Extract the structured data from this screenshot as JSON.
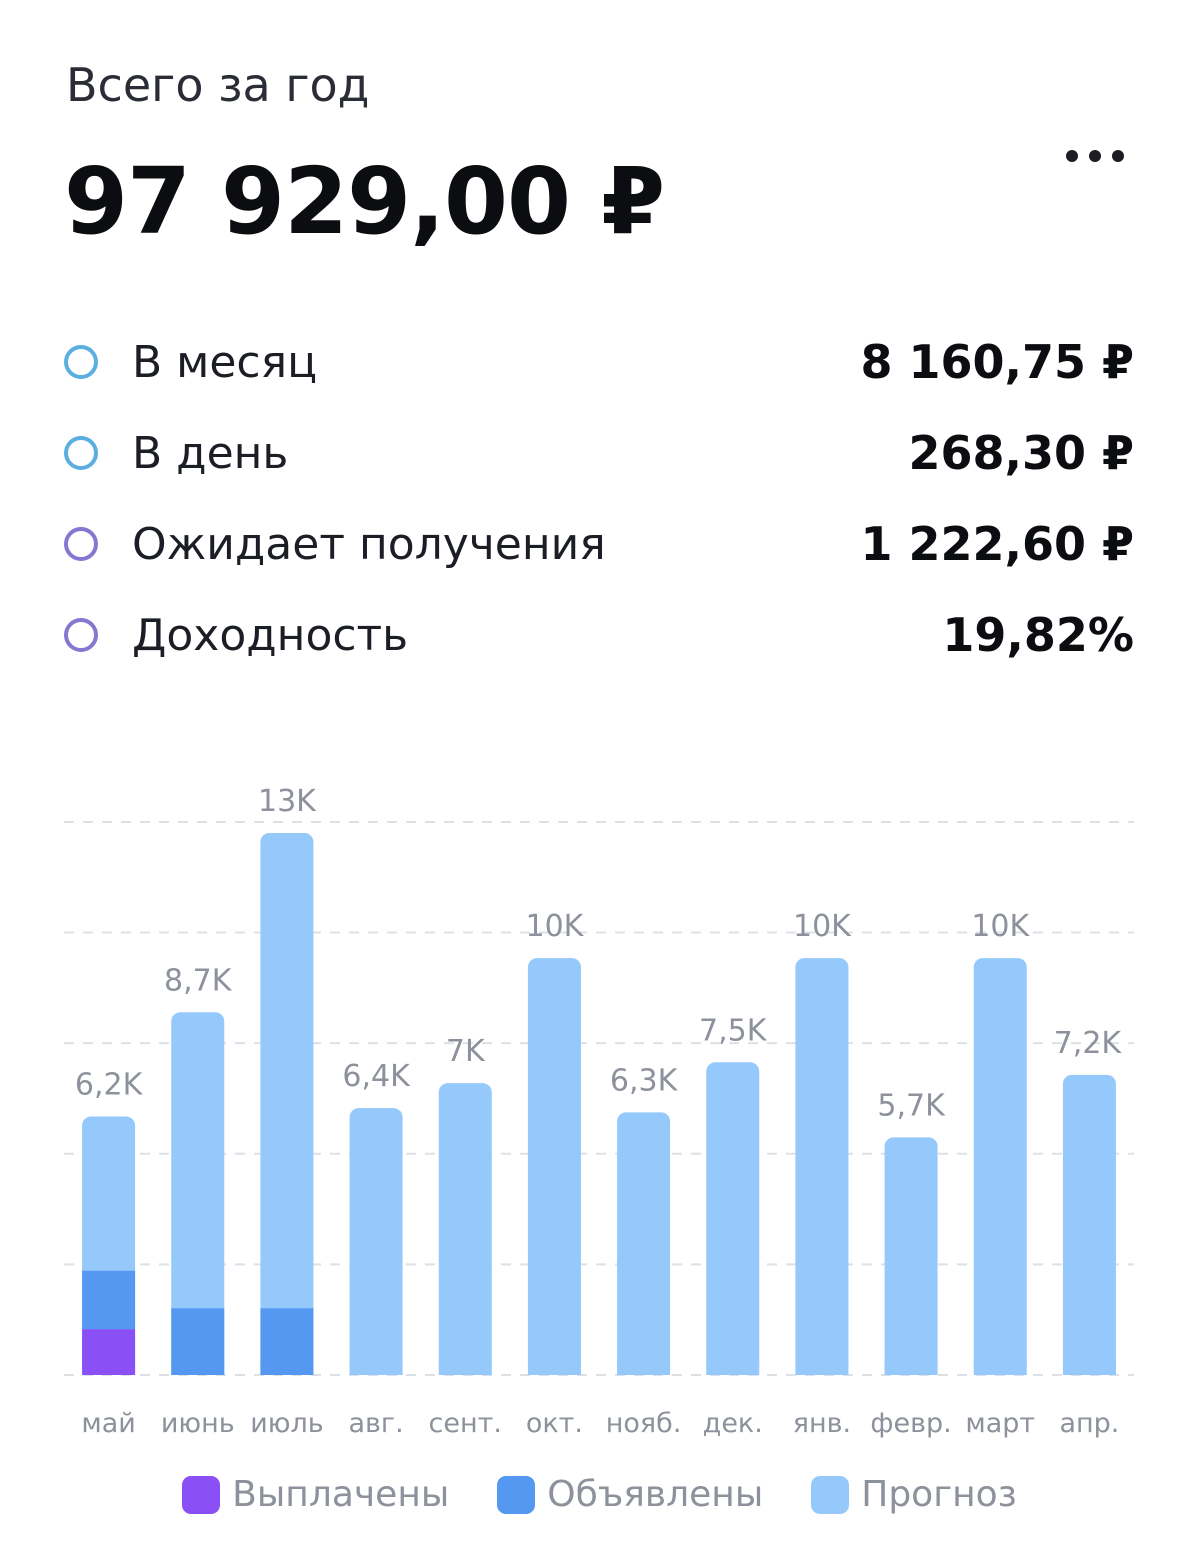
{
  "header": {
    "label": "Всего за год",
    "total": "97 929,00 ₽",
    "more_icon": "more-horizontal-icon"
  },
  "stats": [
    {
      "label": "В месяц",
      "value": "8 160,75 ₽",
      "ring_color": "#5aaee0"
    },
    {
      "label": "В день",
      "value": "268,30 ₽",
      "ring_color": "#5aaee0"
    },
    {
      "label": "Ожидает получения",
      "value": "1 222,60 ₽",
      "ring_color": "#8478d0"
    },
    {
      "label": "Доходность",
      "value": "19,82%",
      "ring_color": "#8478d0"
    }
  ],
  "chart_data": {
    "type": "bar",
    "stacked": true,
    "categories": [
      "май",
      "июнь",
      "июль",
      "авг.",
      "сент.",
      "окт.",
      "нояб.",
      "дек.",
      "янв.",
      "февр.",
      "март",
      "апр."
    ],
    "totals": [
      6200,
      8700,
      13000,
      6400,
      7000,
      10000,
      6300,
      7500,
      10000,
      5700,
      10000,
      7200
    ],
    "value_labels": [
      "6,2K",
      "8,7K",
      "13K",
      "6,4K",
      "7K",
      "10K",
      "6,3K",
      "7,5K",
      "10K",
      "5,7K",
      "10K",
      "7,2K"
    ],
    "series": [
      {
        "name": "Выплачены",
        "color": "#8a50f5",
        "values": [
          1100,
          0,
          0,
          0,
          0,
          0,
          0,
          0,
          0,
          0,
          0,
          0
        ]
      },
      {
        "name": "Объявлены",
        "color": "#5598f2",
        "values": [
          1400,
          1600,
          1600,
          0,
          0,
          0,
          0,
          0,
          0,
          0,
          0,
          0
        ]
      },
      {
        "name": "Прогноз",
        "color": "#95c8fb",
        "values": [
          3700,
          7100,
          11400,
          6400,
          7000,
          10000,
          6300,
          7500,
          10000,
          5700,
          10000,
          7200
        ]
      }
    ],
    "ylim": [
      0,
      13000
    ],
    "grid": true,
    "grid_color": "#dde0e6",
    "legend_position": "bottom"
  }
}
